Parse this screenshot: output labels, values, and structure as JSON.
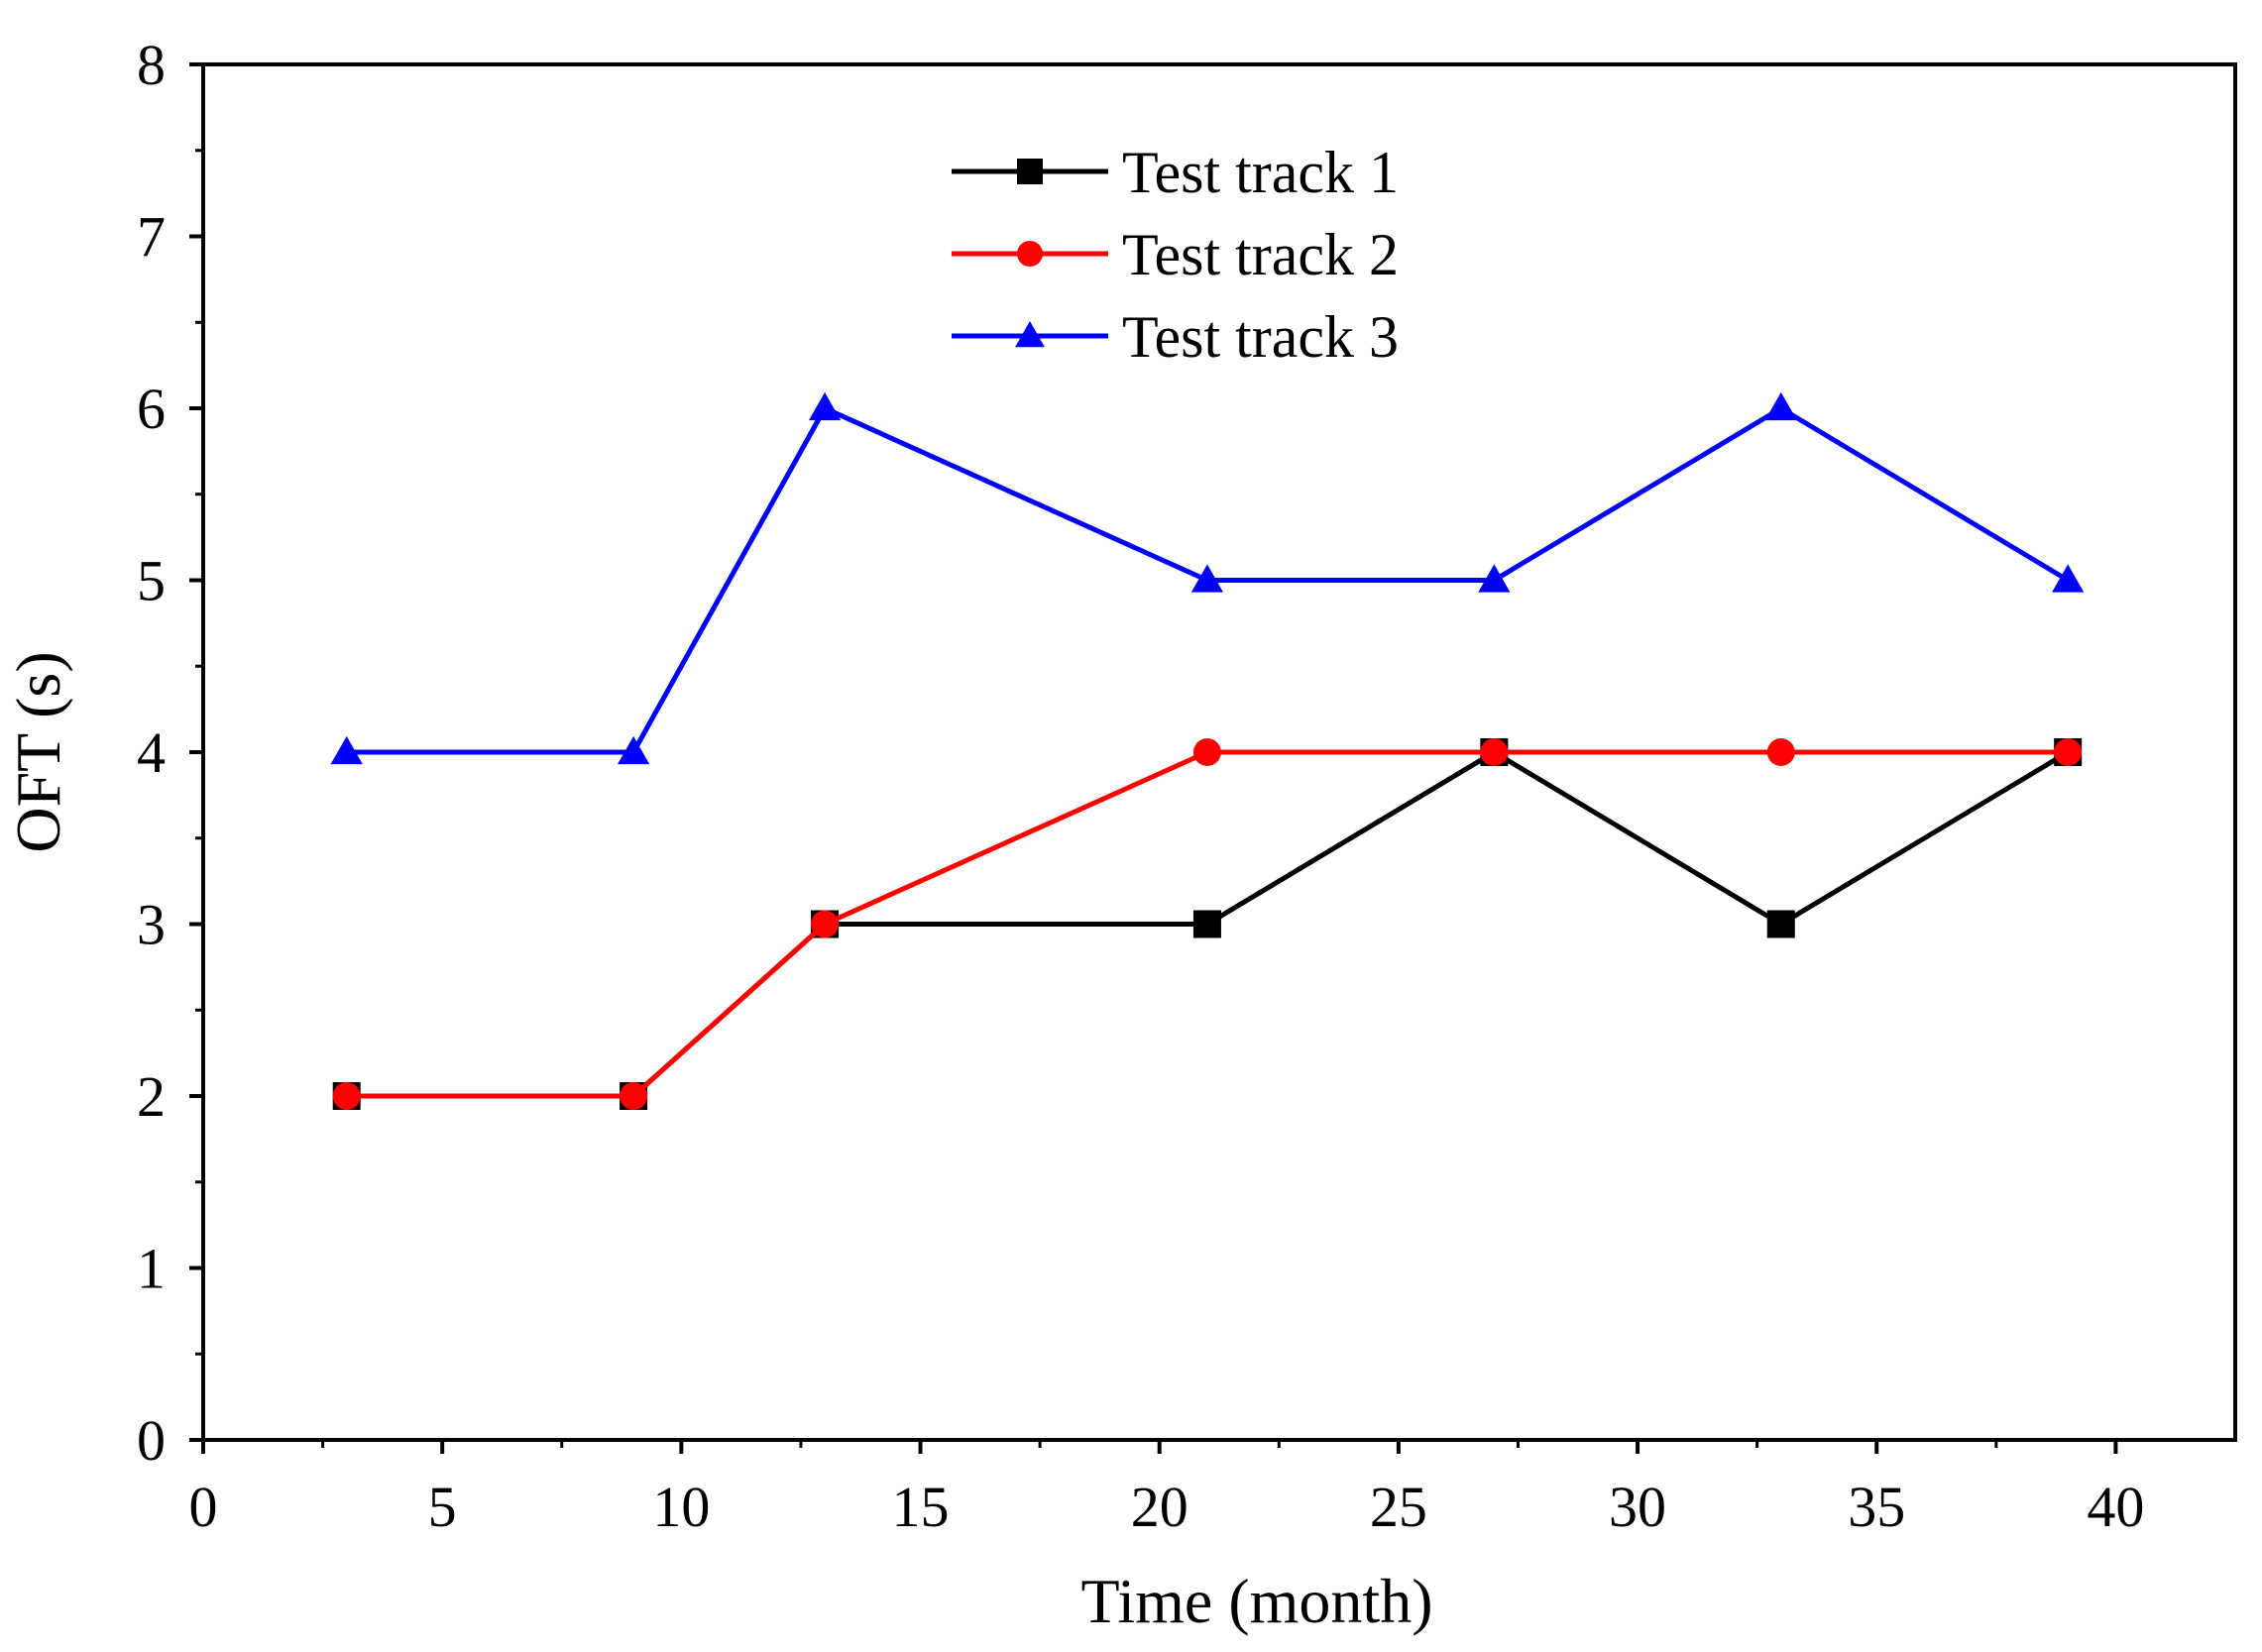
{
  "chart_data": {
    "type": "line",
    "title": "",
    "xlabel": "Time (month)",
    "ylabel": "OFT (s)",
    "xlim": [
      0,
      42.5
    ],
    "ylim": [
      0,
      8
    ],
    "x_ticks": [
      0,
      5,
      10,
      15,
      20,
      25,
      30,
      35,
      40
    ],
    "y_ticks": [
      0,
      1,
      2,
      3,
      4,
      5,
      6,
      7,
      8
    ],
    "grid": false,
    "legend_position": "top-center",
    "x": [
      3,
      9,
      13,
      21,
      27,
      33,
      39
    ],
    "series": [
      {
        "name": "Test track 1",
        "color": "#000000",
        "marker": "square",
        "values": [
          2,
          2,
          3,
          3,
          4,
          3,
          4
        ]
      },
      {
        "name": "Test track 2",
        "color": "#ff0000",
        "marker": "circle",
        "values": [
          2,
          2,
          3,
          4,
          4,
          4,
          4
        ]
      },
      {
        "name": "Test track 3",
        "color": "#0000ff",
        "marker": "triangle",
        "values": [
          4,
          4,
          6,
          5,
          5,
          6,
          5
        ]
      }
    ]
  }
}
